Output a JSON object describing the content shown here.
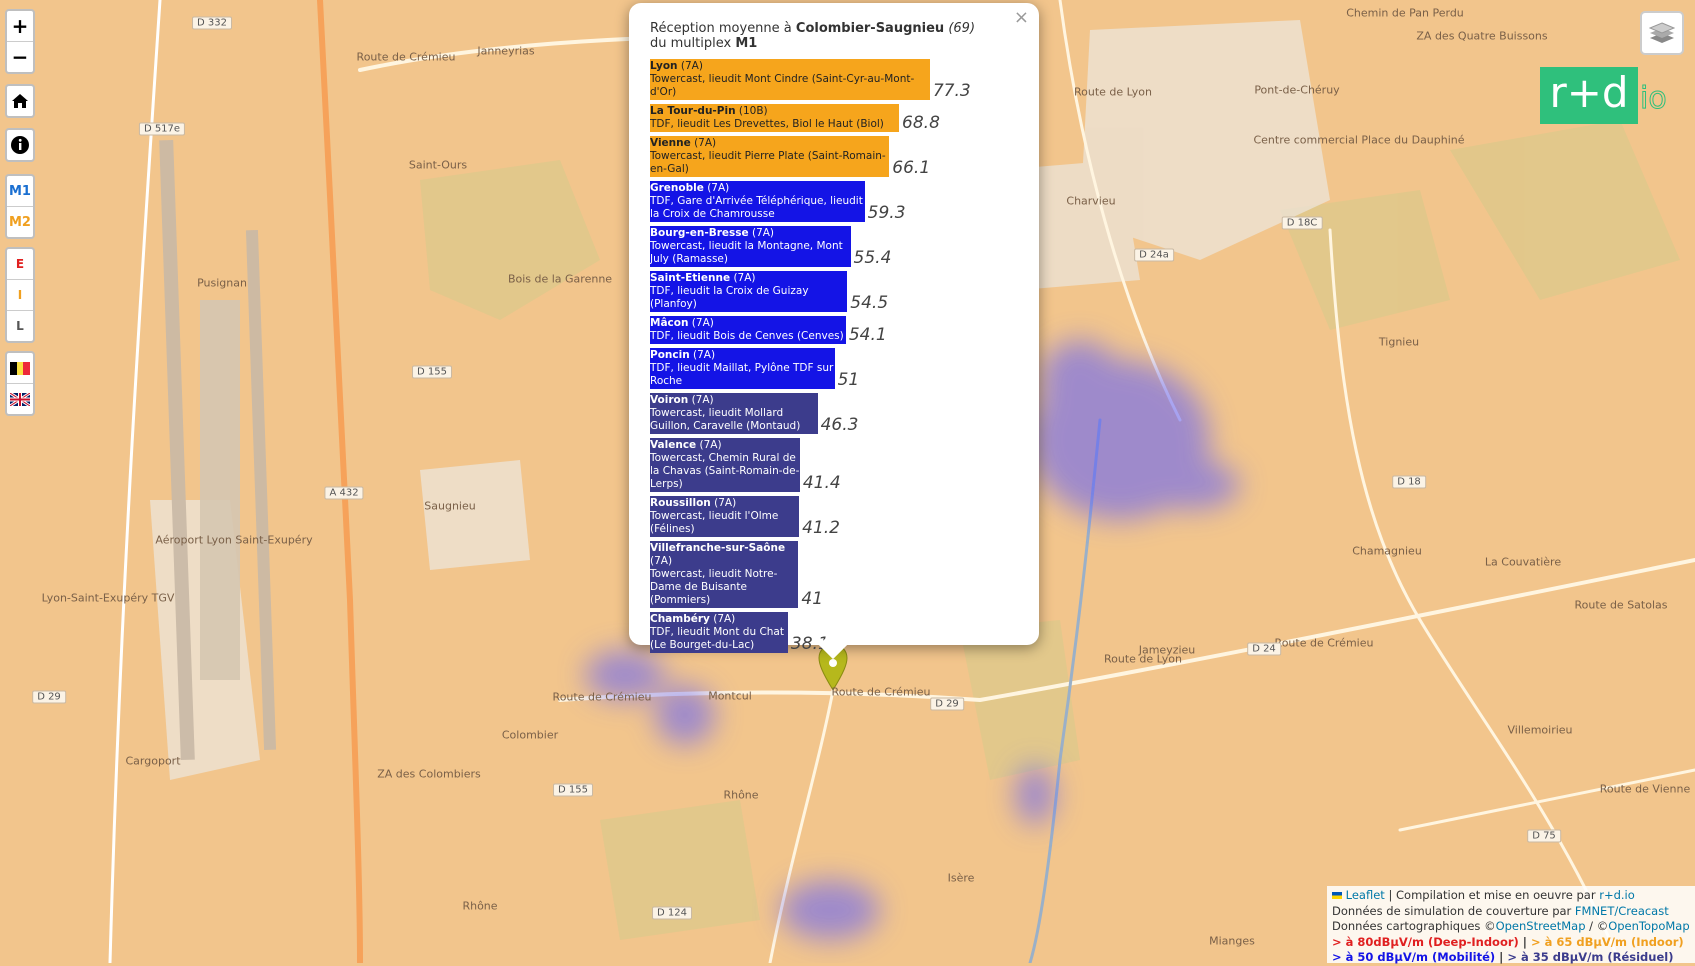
{
  "controls": {
    "zoom_in": "+",
    "zoom_out": "−",
    "multiplex": [
      "M1",
      "M2"
    ],
    "environment": [
      "E",
      "I",
      "L"
    ]
  },
  "logo": {
    "main": "r+d",
    "suffix": "io"
  },
  "popup": {
    "close": "×",
    "title_prefix": "Réception moyenne à ",
    "place": "Colombier-Saugnieu",
    "department": "(69)",
    "subtitle_prefix": "du multiplex ",
    "multiplex": "M1",
    "rows": [
      {
        "name": "Lyon",
        "channel": "(7A)",
        "site": "Towercast, lieudit Mont Cindre (Saint-Cyr-au-Mont-d'Or)",
        "value": 77.3,
        "color": "#f6a51c"
      },
      {
        "name": "La Tour-du-Pin",
        "channel": "(10B)",
        "site": "TDF, lieudit Les Drevettes, Biol le Haut (Biol)",
        "value": 68.8,
        "color": "#f6a51c"
      },
      {
        "name": "Vienne",
        "channel": "(7A)",
        "site": "Towercast, lieudit Pierre Plate (Saint-Romain-en-Gal)",
        "value": 66.1,
        "color": "#f6a51c"
      },
      {
        "name": "Grenoble",
        "channel": "(7A)",
        "site": "TDF, Gare d'Arrivée Téléphérique, lieudit la Croix de Chamrousse",
        "value": 59.3,
        "color": "#1414e6"
      },
      {
        "name": "Bourg-en-Bresse",
        "channel": "(7A)",
        "site": "Towercast, lieudit la Montagne, Mont July (Ramasse)",
        "value": 55.4,
        "color": "#1414e6"
      },
      {
        "name": "Saint-Etienne",
        "channel": "(7A)",
        "site": "TDF, lieudit la Croix de Guizay (Planfoy)",
        "value": 54.5,
        "color": "#1414e6"
      },
      {
        "name": "Mâcon",
        "channel": "(7A)",
        "site": "TDF, lieudit Bois de Cenves (Cenves)",
        "value": 54.1,
        "color": "#1414e6"
      },
      {
        "name": "Poncin",
        "channel": "(7A)",
        "site": "TDF, lieudit Maillat, Pylône TDF sur Roche",
        "value": 51,
        "color": "#1414e6"
      },
      {
        "name": "Voiron",
        "channel": "(7A)",
        "site": "Towercast, lieudit Mollard Guillon, Caravelle (Montaud)",
        "value": 46.3,
        "color": "#3c3c8c"
      },
      {
        "name": "Valence",
        "channel": "(7A)",
        "site": "Towercast, Chemin Rural de la Chavas (Saint-Romain-de-Lerps)",
        "value": 41.4,
        "color": "#3c3c8c"
      },
      {
        "name": "Roussillon",
        "channel": "(7A)",
        "site": "Towercast, lieudit l'Olme (Félines)",
        "value": 41.2,
        "color": "#3c3c8c"
      },
      {
        "name": "Villefranche-sur-Saône",
        "channel": "(7A)",
        "site": "Towercast, lieudit Notre-Dame de Buisante (Pommiers)",
        "value": 41,
        "color": "#3c3c8c"
      },
      {
        "name": "Chambéry",
        "channel": "(7A)",
        "site": "TDF, lieudit Mont du Chat (Le Bourget-du-Lac)",
        "value": 38.1,
        "color": "#3c3c8c"
      }
    ]
  },
  "map_labels": [
    "Janneyrias",
    "Route de Crémieu",
    "Saint-Ours",
    "Pusignan",
    "Bois de la Garenne",
    "Saugnieu",
    "Aéroport Lyon Saint-Exupéry",
    "Lyon-Saint-Exupéry TGV",
    "Cargoport",
    "ZA des Colombiers",
    "Colombier",
    "Montcul",
    "Route de Crémieu",
    "Route de Crémieu",
    "Rhône",
    "Rhône",
    "Charvieu",
    "Pont-de-Chéruy",
    "Route de Lyon",
    "Centre commercial Place du Dauphiné",
    "ZA des Quatre Buissons",
    "Chemin de Pan Perdu",
    "Tignieu",
    "Chamagnieu",
    "La Couvatière",
    "Route de Satolas",
    "Jameyzieu",
    "Route de Crémieu",
    "Route de Lyon",
    "Villemoirieu",
    "Route de Vienne",
    "Mianges",
    "Isère"
  ],
  "road_numbers": [
    "D 332",
    "D 517e",
    "D 155",
    "A 432",
    "D 29",
    "D 155",
    "D 29",
    "D 124",
    "D 18C",
    "D 24a",
    "D 18",
    "D 24",
    "D 75"
  ],
  "attribution": {
    "leaflet": "Leaflet",
    "compilation": " | Compilation et mise en oeuvre par ",
    "rd": "r+d.io",
    "simulation": "Données de simulation de couverture par ",
    "fmnet": "FMNET",
    "creacast": "/Creacast",
    "carto": "Données cartographiques ©",
    "osm": "OpenStreetMap",
    "sep": " / ©",
    "otm": "OpenTopoMap",
    "legend": [
      "> à 80dBµV/m (Deep-Indoor)",
      "> à 65 dBµV/m (Indoor)",
      "> à 50 dBµV/m (Mobilité)",
      "> à 35 dBµV/m (Résiduel)"
    ]
  }
}
